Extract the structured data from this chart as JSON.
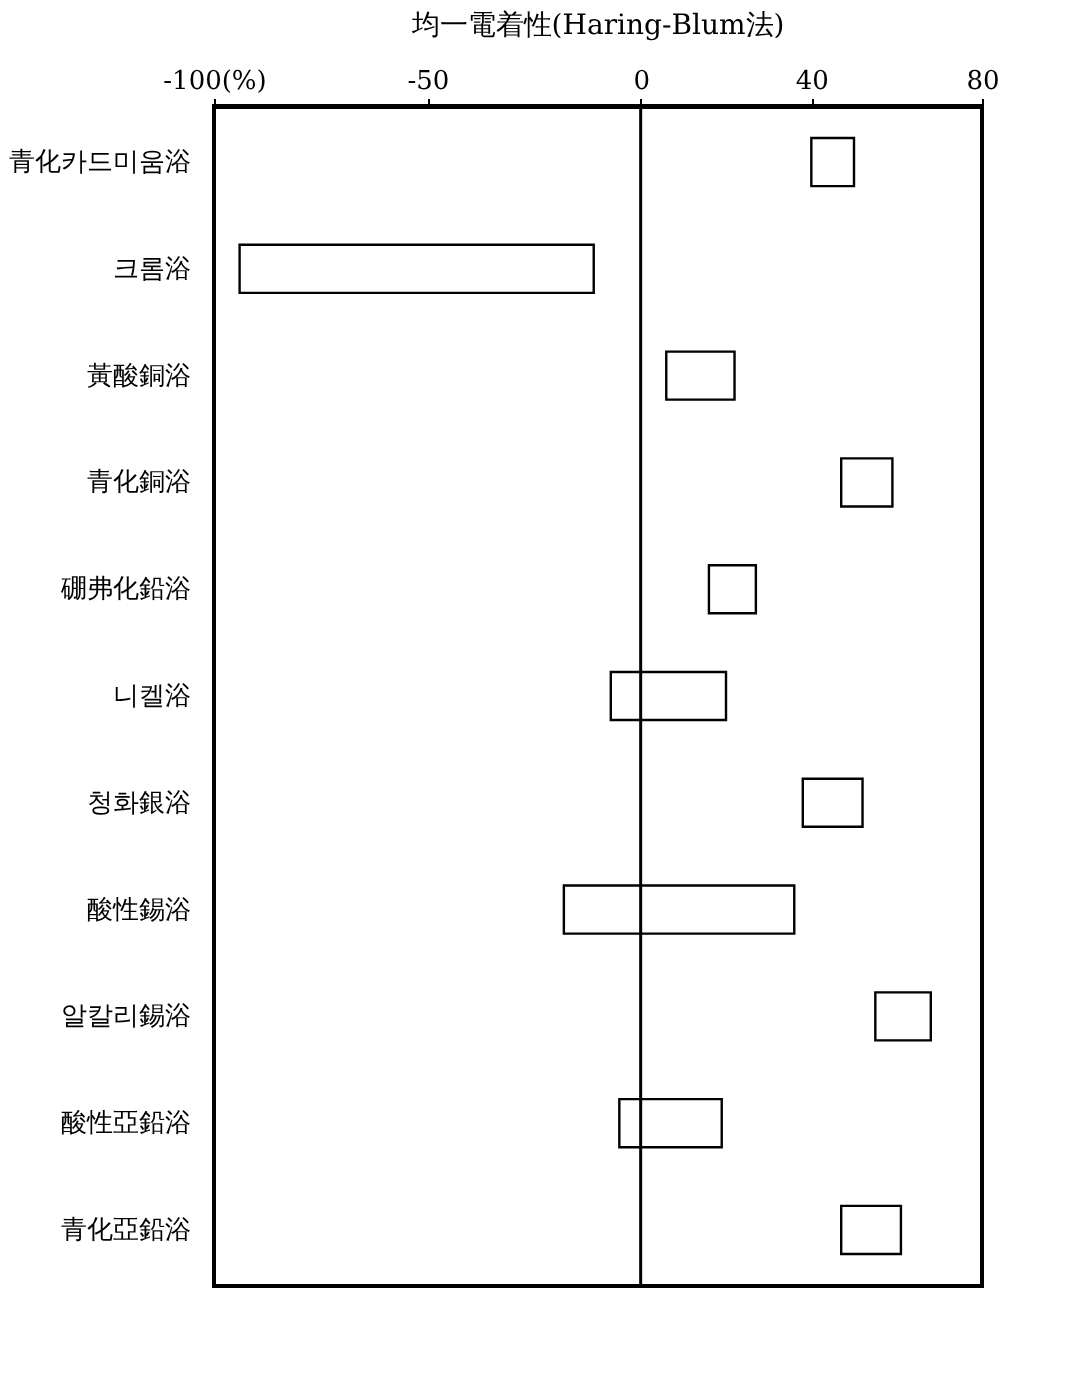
{
  "chart_data": {
    "type": "bar",
    "orientation": "horizontal",
    "title": "均一電着性(Haring-Blum法)",
    "categories": [
      "青化카드미움浴",
      "크롬浴",
      "黃酸銅浴",
      "青化銅浴",
      "硼弗化鉛浴",
      "니켈浴",
      "청화銀浴",
      "酸性錫浴",
      "알칼리錫浴",
      "酸性亞鉛浴",
      "青化亞鉛浴"
    ],
    "base": [
      40,
      -94,
      6,
      47,
      16,
      -7,
      38,
      -18,
      55,
      -5,
      47
    ],
    "values": [
      10,
      83,
      16,
      12,
      11,
      27,
      14,
      54,
      13,
      24,
      14
    ],
    "color": "#ffffff",
    "xlim": [
      -100,
      80
    ],
    "xticks": [
      {
        "value": -100,
        "label": "-100(%)"
      },
      -50,
      0,
      40,
      80
    ],
    "ref_lines": [
      {
        "axis": "x",
        "value": 0,
        "color": "#000000"
      }
    ],
    "grid": false
  }
}
